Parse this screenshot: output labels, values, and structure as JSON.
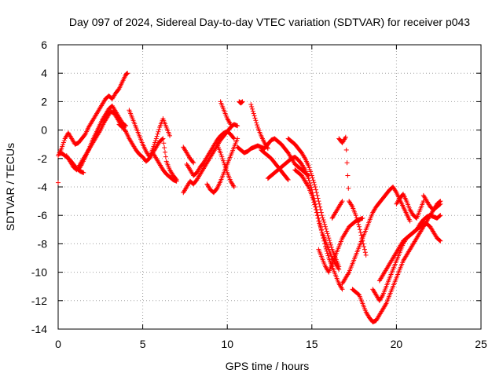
{
  "chart_data": {
    "type": "scatter",
    "title": "Day 097 of 2024, Sidereal Day-to-day VTEC variation (SDTVAR) for receiver p043",
    "xlabel": "GPS time / hours",
    "ylabel": "SDTVAR / TECUs",
    "xlim": [
      0,
      25
    ],
    "ylim": [
      -14,
      6
    ],
    "xticks": [
      "0",
      "5",
      "10",
      "15",
      "20",
      "25"
    ],
    "yticks": [
      "6",
      "4",
      "2",
      "0",
      "-2",
      "-4",
      "-6",
      "-8",
      "-10",
      "-12",
      "-14"
    ],
    "grid": true,
    "marker": "+",
    "marker_color": "#ff0000",
    "tracks": [
      {
        "x": [
          0.0,
          0.2,
          0.4,
          0.6,
          0.8,
          1.0,
          1.2,
          1.4,
          1.6,
          1.8,
          2.0,
          2.2,
          2.4,
          2.6,
          2.8,
          3.0,
          3.2,
          3.4,
          3.6,
          3.8,
          4.0,
          4.1
        ],
        "y": [
          -1.8,
          -1.3,
          -0.6,
          -0.2,
          -0.6,
          -1.0,
          -0.9,
          -0.6,
          -0.3,
          0.2,
          0.6,
          1.0,
          1.4,
          1.8,
          2.2,
          2.4,
          2.2,
          2.6,
          2.9,
          3.4,
          3.9,
          4.0
        ]
      },
      {
        "x": [
          0.5,
          0.7,
          0.9,
          1.1,
          1.3,
          1.5,
          1.7,
          1.9,
          2.1,
          2.3,
          2.5,
          2.7,
          2.9,
          3.1,
          3.3,
          3.5,
          3.7,
          3.9
        ],
        "y": [
          -1.8,
          -2.2,
          -2.6,
          -2.8,
          -2.4,
          -2.0,
          -1.6,
          -1.2,
          -0.8,
          -0.4,
          0.0,
          0.5,
          0.9,
          1.3,
          1.2,
          0.8,
          0.4,
          0.2
        ]
      },
      {
        "x": [
          0.1,
          0.3,
          0.5,
          0.7,
          0.9,
          1.1,
          1.3,
          1.5
        ],
        "y": [
          -1.6,
          -1.7,
          -1.9,
          -2.1,
          -2.4,
          -2.7,
          -2.9,
          -3.0
        ]
      },
      {
        "x": [
          1.2,
          1.4,
          1.6,
          1.8,
          2.0,
          2.2,
          2.4,
          2.6,
          2.8,
          3.0,
          3.2,
          3.4,
          3.6,
          3.8,
          4.0
        ],
        "y": [
          -2.8,
          -2.4,
          -1.9,
          -1.4,
          -0.8,
          -0.3,
          0.2,
          0.7,
          1.1,
          1.5,
          1.7,
          1.3,
          0.9,
          0.5,
          0.3
        ]
      },
      {
        "x": [
          3.6,
          3.8,
          4.0,
          4.2,
          4.4,
          4.6,
          4.8,
          5.0,
          5.2,
          5.4,
          5.6,
          5.8,
          6.0,
          6.2,
          6.4,
          6.6,
          6.8,
          7.0
        ],
        "y": [
          0.4,
          0.2,
          -0.1,
          -0.6,
          -1.0,
          -1.4,
          -1.7,
          -1.9,
          -2.2,
          -2.0,
          -1.6,
          -1.2,
          -0.8,
          -0.6,
          -2.2,
          -2.8,
          -3.2,
          -3.5
        ]
      },
      {
        "x": [
          4.2,
          4.4,
          4.6,
          4.8,
          5.0,
          5.2,
          5.4,
          5.6,
          5.8,
          6.0,
          6.2,
          6.4,
          6.6
        ],
        "y": [
          1.4,
          0.8,
          0.2,
          -0.4,
          -1.0,
          -1.5,
          -1.9,
          -1.3,
          -0.6,
          0.2,
          0.8,
          0.2,
          -0.4
        ]
      },
      {
        "x": [
          5.6,
          5.8,
          6.0,
          6.2,
          6.4,
          6.6,
          6.8,
          7.0
        ],
        "y": [
          -1.6,
          -2.0,
          -2.4,
          -2.8,
          -3.1,
          -3.3,
          -3.5,
          -3.6
        ]
      },
      {
        "x": [
          7.4,
          7.6,
          7.8,
          8.0,
          8.2,
          8.4,
          8.6,
          8.8,
          9.0,
          9.2,
          9.4,
          9.6,
          9.8,
          10.0,
          10.2,
          10.4,
          10.6
        ],
        "y": [
          -4.4,
          -4.0,
          -3.6,
          -3.8,
          -3.5,
          -3.1,
          -2.7,
          -2.3,
          -1.9,
          -1.5,
          -1.1,
          -0.7,
          -0.4,
          -0.1,
          0.2,
          0.4,
          0.3
        ]
      },
      {
        "x": [
          7.6,
          7.8,
          8.0,
          8.2,
          8.4,
          8.6,
          8.8,
          9.0,
          9.2,
          9.4,
          9.6,
          9.8,
          10.0,
          10.2,
          10.4
        ],
        "y": [
          -2.4,
          -2.8,
          -3.2,
          -3.0,
          -2.6,
          -2.3,
          -1.9,
          -1.5,
          -1.1,
          -0.7,
          -0.4,
          -0.2,
          -0.1,
          -0.3,
          -0.6
        ]
      },
      {
        "x": [
          8.8,
          9.0,
          9.2,
          9.4,
          9.6,
          9.8,
          10.0,
          10.2,
          10.4,
          10.6
        ],
        "y": [
          -3.8,
          -4.2,
          -4.4,
          -4.1,
          -3.6,
          -3.0,
          -2.4,
          -1.8,
          -1.2,
          -0.6
        ]
      },
      {
        "x": [
          7.4,
          7.6,
          7.8,
          8.0
        ],
        "y": [
          -1.2,
          -1.6,
          -2.0,
          -2.3
        ]
      },
      {
        "x": [
          9.6,
          9.8,
          10.0,
          10.2
        ],
        "y": [
          2.0,
          1.4,
          0.8,
          0.4
        ]
      },
      {
        "x": [
          10.7,
          10.8,
          10.9
        ],
        "y": [
          2.0,
          1.9,
          2.0
        ]
      },
      {
        "x": [
          9.4,
          9.6,
          9.8,
          10.0,
          10.2,
          10.4
        ],
        "y": [
          -1.0,
          -1.6,
          -2.3,
          -3.0,
          -3.6,
          -4.0
        ]
      },
      {
        "x": [
          10.6,
          10.8,
          11.0,
          11.2,
          11.4,
          11.6,
          11.8,
          12.0,
          12.2,
          12.4,
          12.6,
          12.8,
          13.0,
          13.2,
          13.4,
          13.6,
          13.8,
          14.0,
          14.2,
          14.4,
          14.6,
          14.8
        ],
        "y": [
          -1.2,
          -1.4,
          -1.6,
          -1.5,
          -1.3,
          -1.2,
          -1.1,
          -1.2,
          -1.3,
          -1.0,
          -0.7,
          -0.6,
          -0.8,
          -1.0,
          -1.3,
          -1.6,
          -2.0,
          -2.4,
          -2.6,
          -2.8,
          -3.0,
          -3.2
        ]
      },
      {
        "x": [
          11.4,
          11.6,
          11.8,
          12.0,
          12.2,
          12.4
        ],
        "y": [
          1.8,
          1.0,
          0.2,
          -0.4,
          -0.9,
          -1.3
        ]
      },
      {
        "x": [
          12.0,
          12.2,
          12.4,
          12.6,
          12.8,
          13.0,
          13.2,
          13.4,
          13.6
        ],
        "y": [
          -1.4,
          -1.6,
          -1.8,
          -2.0,
          -2.3,
          -2.6,
          -2.9,
          -3.2,
          -3.5
        ]
      },
      {
        "x": [
          12.4,
          12.6,
          12.8,
          13.0,
          13.2,
          13.4,
          13.6,
          13.8,
          14.0,
          14.2,
          14.4,
          14.6,
          14.8,
          15.0,
          15.2,
          15.4,
          15.6,
          15.8,
          16.0,
          16.2,
          16.4,
          16.6,
          16.8
        ],
        "y": [
          -3.4,
          -3.2,
          -3.0,
          -2.8,
          -2.6,
          -2.4,
          -2.2,
          -2.0,
          -1.9,
          -2.1,
          -2.4,
          -2.8,
          -3.4,
          -4.2,
          -5.2,
          -6.2,
          -7.2,
          -8.2,
          -9.0,
          -9.6,
          -10.2,
          -10.8,
          -11.2
        ]
      },
      {
        "x": [
          13.6,
          13.8,
          14.0,
          14.2,
          14.4,
          14.6,
          14.8,
          15.0,
          15.2,
          15.4,
          15.6,
          15.8,
          16.0,
          16.2,
          16.4,
          16.6
        ],
        "y": [
          -0.6,
          -0.8,
          -1.0,
          -1.3,
          -1.6,
          -2.0,
          -2.5,
          -3.2,
          -4.0,
          -5.0,
          -6.0,
          -6.8,
          -7.6,
          -8.4,
          -9.0,
          -9.6
        ]
      },
      {
        "x": [
          14.0,
          14.2,
          14.4,
          14.6,
          14.8,
          15.0,
          15.2,
          15.4,
          15.6,
          15.8,
          16.0,
          16.2,
          16.4,
          16.6
        ],
        "y": [
          -2.8,
          -3.0,
          -3.2,
          -3.6,
          -4.0,
          -4.6,
          -5.4,
          -6.4,
          -7.2,
          -7.8,
          -8.4,
          -9.0,
          -9.4,
          -9.8
        ]
      },
      {
        "x": [
          15.4,
          15.6,
          15.8,
          16.0,
          16.2,
          16.4,
          16.6,
          16.8,
          17.0,
          17.2,
          17.4,
          17.6,
          17.8,
          18.0
        ],
        "y": [
          -8.4,
          -9.0,
          -9.6,
          -10.0,
          -9.4,
          -8.8,
          -8.2,
          -7.6,
          -7.2,
          -6.8,
          -6.6,
          -6.4,
          -6.3,
          -6.2
        ]
      },
      {
        "x": [
          16.2,
          16.4,
          16.6,
          16.8
        ],
        "y": [
          -6.2,
          -5.8,
          -5.4,
          -5.0
        ]
      },
      {
        "x": [
          16.6,
          16.8,
          17.0,
          17.2,
          17.4,
          17.6,
          17.8,
          18.0,
          18.2
        ],
        "y": [
          -0.6,
          -0.9,
          -0.5,
          -5.0,
          -5.4,
          -6.0,
          -6.8,
          -7.8,
          -8.8
        ]
      },
      {
        "x": [
          16.8,
          17.0,
          17.2,
          17.4,
          17.6,
          17.8,
          18.0,
          18.2,
          18.4,
          18.6,
          18.8,
          19.0,
          19.2,
          19.4,
          19.6,
          19.8,
          20.0,
          20.2,
          20.4,
          20.6,
          20.8
        ],
        "y": [
          -10.8,
          -10.4,
          -10.0,
          -9.4,
          -8.8,
          -8.2,
          -7.6,
          -7.0,
          -6.4,
          -5.8,
          -5.4,
          -5.1,
          -4.8,
          -4.5,
          -4.2,
          -4.0,
          -4.4,
          -4.9,
          -5.4,
          -5.9,
          -6.4
        ]
      },
      {
        "x": [
          17.4,
          17.6,
          17.8,
          18.0,
          18.2,
          18.4,
          18.6,
          18.8,
          19.0,
          19.2,
          19.4,
          19.6,
          19.8,
          20.0,
          20.2,
          20.4,
          20.6,
          20.8,
          21.0,
          21.2,
          21.4,
          21.6,
          21.8,
          22.0,
          22.2,
          22.4,
          22.6
        ],
        "y": [
          -11.2,
          -11.4,
          -11.6,
          -12.2,
          -12.8,
          -13.2,
          -13.5,
          -13.4,
          -13.0,
          -12.6,
          -12.2,
          -11.6,
          -11.0,
          -10.4,
          -9.8,
          -9.2,
          -8.8,
          -8.4,
          -8.0,
          -7.6,
          -7.2,
          -6.8,
          -6.4,
          -6.0,
          -5.6,
          -5.2,
          -5.0
        ]
      },
      {
        "x": [
          18.6,
          18.8,
          19.0,
          19.2,
          19.4,
          19.6,
          19.8,
          20.0,
          20.2,
          20.4,
          20.6,
          20.8,
          21.0,
          21.2,
          21.4,
          21.6,
          21.8,
          22.0,
          22.2,
          22.4,
          22.6
        ],
        "y": [
          -11.2,
          -11.6,
          -12.0,
          -11.6,
          -11.0,
          -10.4,
          -9.8,
          -9.2,
          -8.6,
          -8.0,
          -7.6,
          -7.4,
          -7.2,
          -7.0,
          -6.6,
          -6.3,
          -6.1,
          -6.0,
          -6.1,
          -6.2,
          -6.0
        ]
      },
      {
        "x": [
          19.0,
          19.2,
          19.4,
          19.6,
          19.8,
          20.0,
          20.2,
          20.4,
          20.6,
          20.8,
          21.0,
          21.2,
          21.4,
          21.6,
          21.8,
          22.0,
          22.2,
          22.4,
          22.6
        ],
        "y": [
          -10.6,
          -10.2,
          -9.8,
          -9.4,
          -9.0,
          -8.6,
          -8.2,
          -7.8,
          -7.6,
          -7.4,
          -7.2,
          -7.0,
          -6.8,
          -6.6,
          -6.6,
          -6.8,
          -7.2,
          -7.6,
          -7.8
        ]
      },
      {
        "x": [
          20.0,
          20.2,
          20.4,
          20.6,
          20.8,
          21.0,
          21.2,
          21.4,
          21.6
        ],
        "y": [
          -5.2,
          -4.8,
          -4.5,
          -5.0,
          -5.6,
          -6.0,
          -6.2,
          -5.6,
          -5.0
        ]
      },
      {
        "x": [
          21.6,
          21.8,
          22.0,
          22.2,
          22.4,
          22.6
        ],
        "y": [
          -4.6,
          -5.0,
          -5.4,
          -5.6,
          -5.4,
          -5.2
        ]
      },
      {
        "x": [
          0.0,
          -0.05
        ],
        "y": [
          -3.7,
          -3.7
        ]
      }
    ]
  }
}
